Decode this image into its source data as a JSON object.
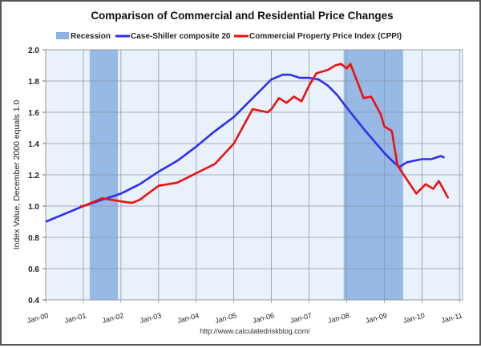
{
  "chart_data": {
    "type": "line",
    "title": "Comparison of Commercial and Residential Price Changes",
    "ylabel": "Index Value, December 2000 equals 1.0",
    "xlabel": "",
    "source": "http://www.calculatedriskblog.com/",
    "ylim": [
      0.4,
      2.0
    ],
    "xlim": [
      2000,
      2011.08
    ],
    "yticks": [
      "0.4",
      "0.6",
      "0.8",
      "1.0",
      "1.2",
      "1.4",
      "1.6",
      "1.8",
      "2.0"
    ],
    "xticks": [
      "Jan-00",
      "Jan-01",
      "Jan-02",
      "Jan-03",
      "Jan-04",
      "Jan-05",
      "Jan-06",
      "Jan-07",
      "Jan-08",
      "Jan-09",
      "Jan-10",
      "Jan-11"
    ],
    "grid": true,
    "legend_position": "top",
    "legend": [
      "Recession",
      "Case-Shiller composite 20",
      "Commercial Property Price Index (CPPI)"
    ],
    "recessions": [
      [
        2001.17,
        2001.92
      ],
      [
        2007.92,
        2009.5
      ]
    ],
    "colors": {
      "recession": "#8db3e2",
      "case_shiller": "#2f2ff0",
      "cppi": "#ee1111",
      "plot_bg": "#e9f1fb",
      "grid": "#8c98a8"
    },
    "series": [
      {
        "name": "Case-Shiller composite 20",
        "color": "#2f2ff0",
        "x": [
          2000.0,
          2000.5,
          2001.0,
          2001.5,
          2002.0,
          2002.5,
          2003.0,
          2003.5,
          2004.0,
          2004.5,
          2005.0,
          2005.5,
          2006.0,
          2006.3,
          2006.5,
          2006.75,
          2007.0,
          2007.25,
          2007.5,
          2007.75,
          2008.0,
          2008.5,
          2009.0,
          2009.25,
          2009.4,
          2009.6,
          2009.8,
          2010.0,
          2010.25,
          2010.5,
          2010.6
        ],
        "y": [
          0.9,
          0.95,
          1.0,
          1.04,
          1.08,
          1.14,
          1.22,
          1.29,
          1.38,
          1.48,
          1.57,
          1.69,
          1.81,
          1.84,
          1.84,
          1.82,
          1.82,
          1.81,
          1.77,
          1.71,
          1.63,
          1.48,
          1.34,
          1.28,
          1.25,
          1.28,
          1.29,
          1.3,
          1.3,
          1.32,
          1.31
        ]
      },
      {
        "name": "Commercial Property Price Index (CPPI)",
        "color": "#ee1111",
        "x": [
          2000.92,
          2001.0,
          2001.5,
          2001.75,
          2002.0,
          2002.3,
          2002.5,
          2003.0,
          2003.5,
          2004.0,
          2004.5,
          2005.0,
          2005.5,
          2005.9,
          2006.0,
          2006.2,
          2006.4,
          2006.6,
          2006.8,
          2007.0,
          2007.2,
          2007.5,
          2007.7,
          2007.85,
          2008.0,
          2008.1,
          2008.45,
          2008.65,
          2008.9,
          2009.0,
          2009.2,
          2009.35,
          2009.6,
          2009.85,
          2010.1,
          2010.3,
          2010.45,
          2010.7
        ],
        "y": [
          1.0,
          1.0,
          1.05,
          1.04,
          1.03,
          1.02,
          1.04,
          1.13,
          1.15,
          1.21,
          1.27,
          1.4,
          1.62,
          1.6,
          1.62,
          1.69,
          1.66,
          1.7,
          1.67,
          1.77,
          1.85,
          1.87,
          1.9,
          1.91,
          1.88,
          1.91,
          1.69,
          1.7,
          1.59,
          1.51,
          1.48,
          1.26,
          1.17,
          1.08,
          1.14,
          1.11,
          1.16,
          1.05
        ]
      }
    ]
  }
}
